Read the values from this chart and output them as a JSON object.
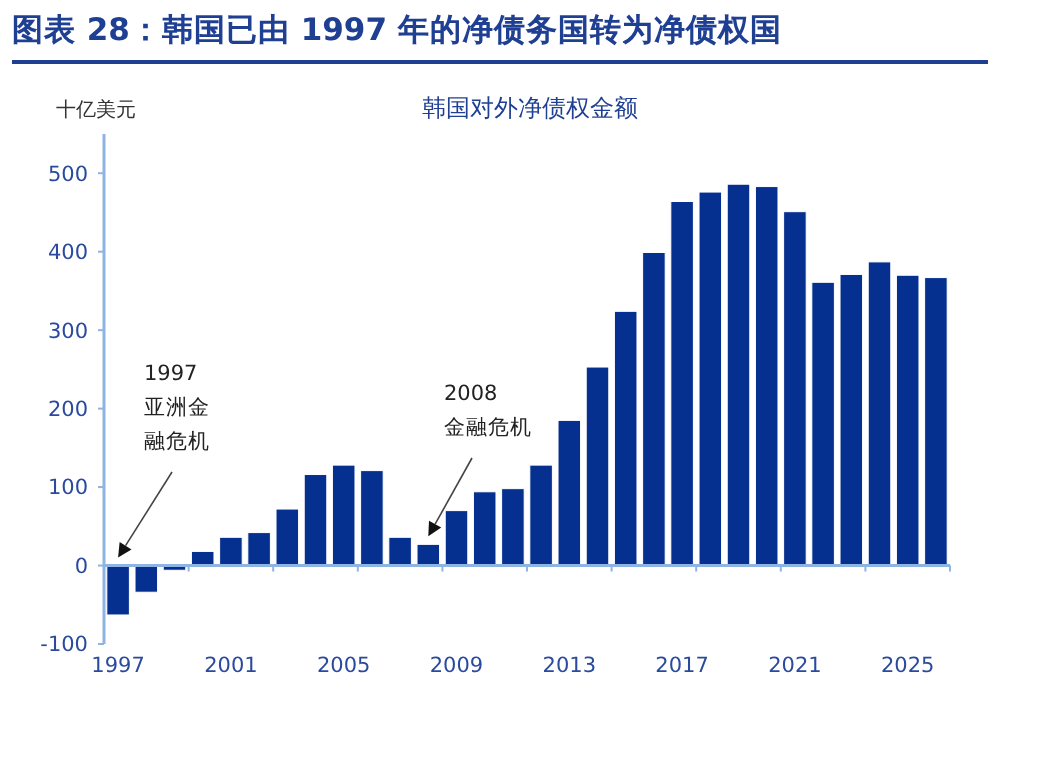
{
  "chart_data": {
    "type": "bar",
    "title": "图表 28：韩国已由 1997 年的净债务国转为净债权国",
    "subtitle": "韩国对外净债权金额",
    "ylabel": "十亿美元",
    "categories": [
      "1997",
      null,
      null,
      null,
      "2001",
      null,
      null,
      null,
      "2005",
      null,
      null,
      null,
      "2009",
      null,
      null,
      null,
      "2013",
      null,
      null,
      null,
      "2017",
      null,
      null,
      null,
      "2021",
      null,
      null,
      null,
      "2025",
      null
    ],
    "values": [
      -63,
      -34,
      -6,
      18,
      36,
      42,
      72,
      116,
      128,
      121,
      36,
      27,
      70,
      94,
      98,
      128,
      185,
      253,
      324,
      399,
      464,
      476,
      486,
      483,
      451,
      361,
      371,
      387,
      370,
      367
    ],
    "color": "#05308f",
    "ylim": [
      -100,
      550
    ],
    "yticks": [
      -100,
      0,
      100,
      200,
      300,
      400,
      500
    ],
    "grid": false,
    "ref_lines": [
      {
        "axis": "y",
        "value": 0,
        "color": "#8db4e2"
      }
    ],
    "annotations": [
      "1997",
      "亚洲金融危机",
      "2008",
      "金融危机"
    ]
  }
}
